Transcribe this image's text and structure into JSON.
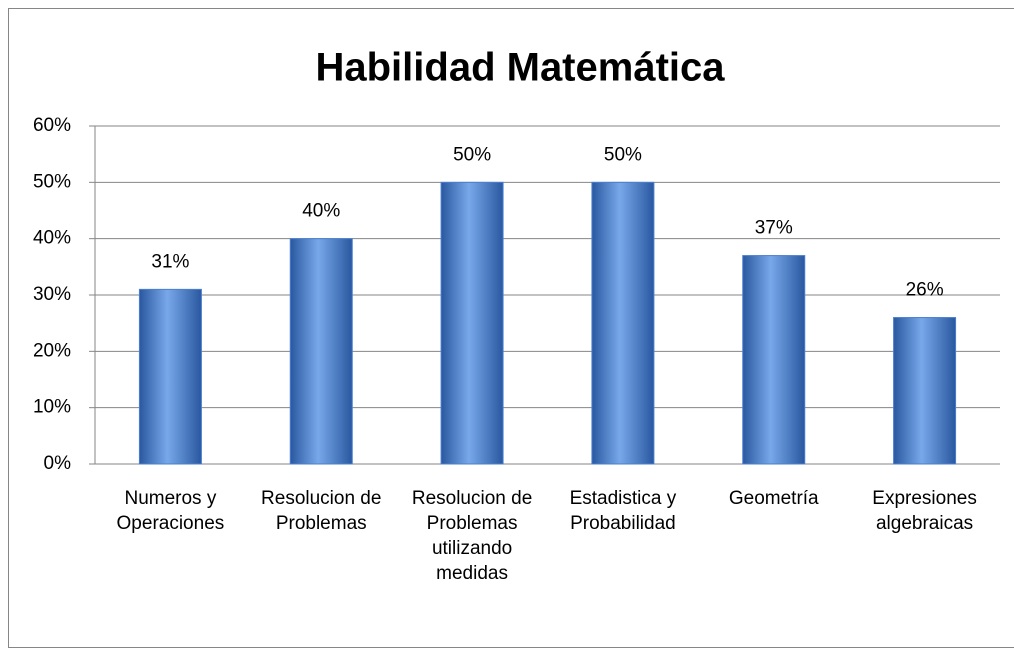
{
  "chart_data": {
    "type": "bar",
    "title": "Habilidad Matemática",
    "categories": [
      "Numeros y Operaciones",
      "Resolucion de Problemas",
      "Resolucion de Problemas utilizando medidas",
      "Estadistica y Probabilidad",
      "Geometría",
      "Expresiones algebraicas"
    ],
    "values": [
      31,
      40,
      50,
      50,
      37,
      26
    ],
    "value_labels": [
      "31%",
      "40%",
      "50%",
      "50%",
      "37%",
      "26%"
    ],
    "color": "#4a7fd0",
    "ylim": [
      0,
      60
    ],
    "yticks": [
      {
        "value": 0,
        "label": "0%"
      },
      {
        "value": 10,
        "label": "10%"
      },
      {
        "value": 20,
        "label": "20%"
      },
      {
        "value": 30,
        "label": "30%"
      },
      {
        "value": 40,
        "label": "40%"
      },
      {
        "value": 50,
        "label": "50%"
      },
      {
        "value": 60,
        "label": "60%"
      }
    ],
    "grid": true
  }
}
